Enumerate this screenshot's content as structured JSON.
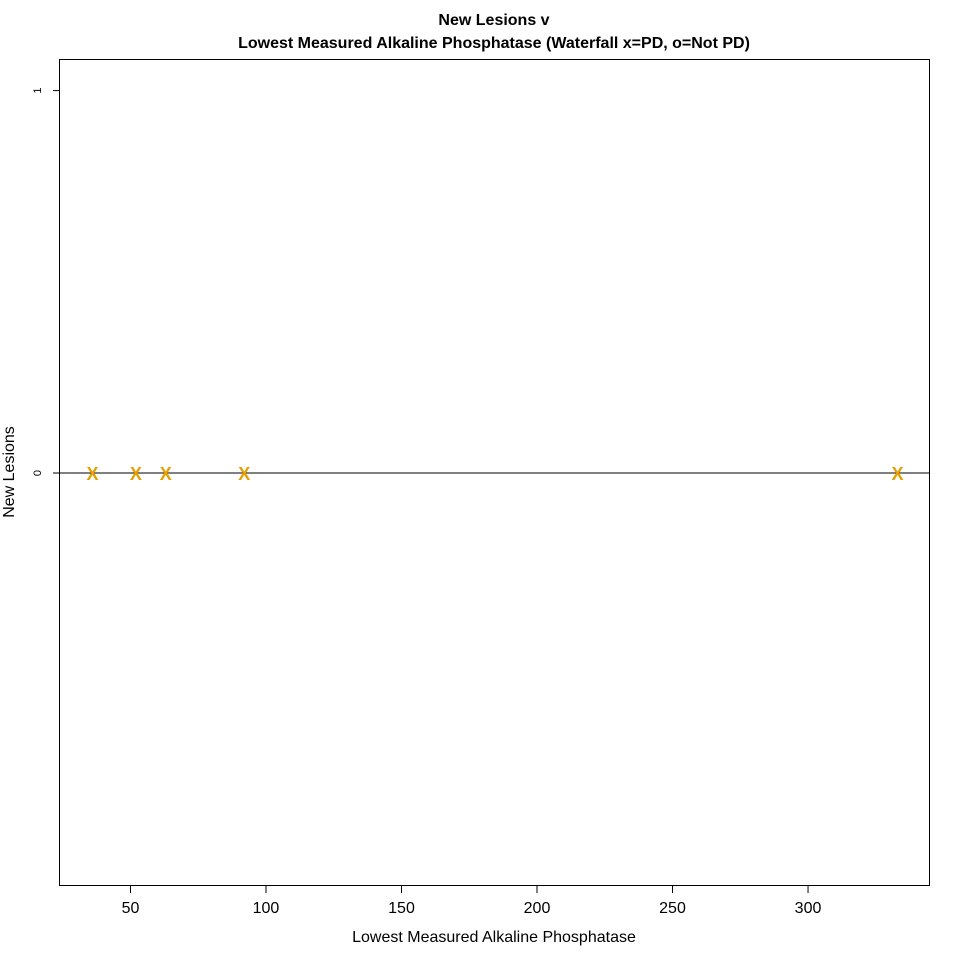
{
  "chart_data": {
    "type": "scatter",
    "title_line1": "New Lesions v",
    "title_line2": "Lowest Measured Alkaline Phosphatase (Waterfall x=PD, o=Not PD)",
    "xlabel": "Lowest Measured Alkaline Phosphatase",
    "ylabel": "New Lesions",
    "xlim": [
      24,
      345
    ],
    "ylim": [
      -1.08,
      1.08
    ],
    "x_ticks": [
      50,
      100,
      150,
      200,
      250,
      300
    ],
    "y_ticks": [
      0,
      1
    ],
    "reference_line_y": 0,
    "marker_color": "#E69F00",
    "series": [
      {
        "marker": "x",
        "points": [
          {
            "x": 36,
            "y": 0
          },
          {
            "x": 52,
            "y": 0
          },
          {
            "x": 63,
            "y": 0
          },
          {
            "x": 92,
            "y": 0
          },
          {
            "x": 333,
            "y": 0
          }
        ]
      }
    ]
  }
}
